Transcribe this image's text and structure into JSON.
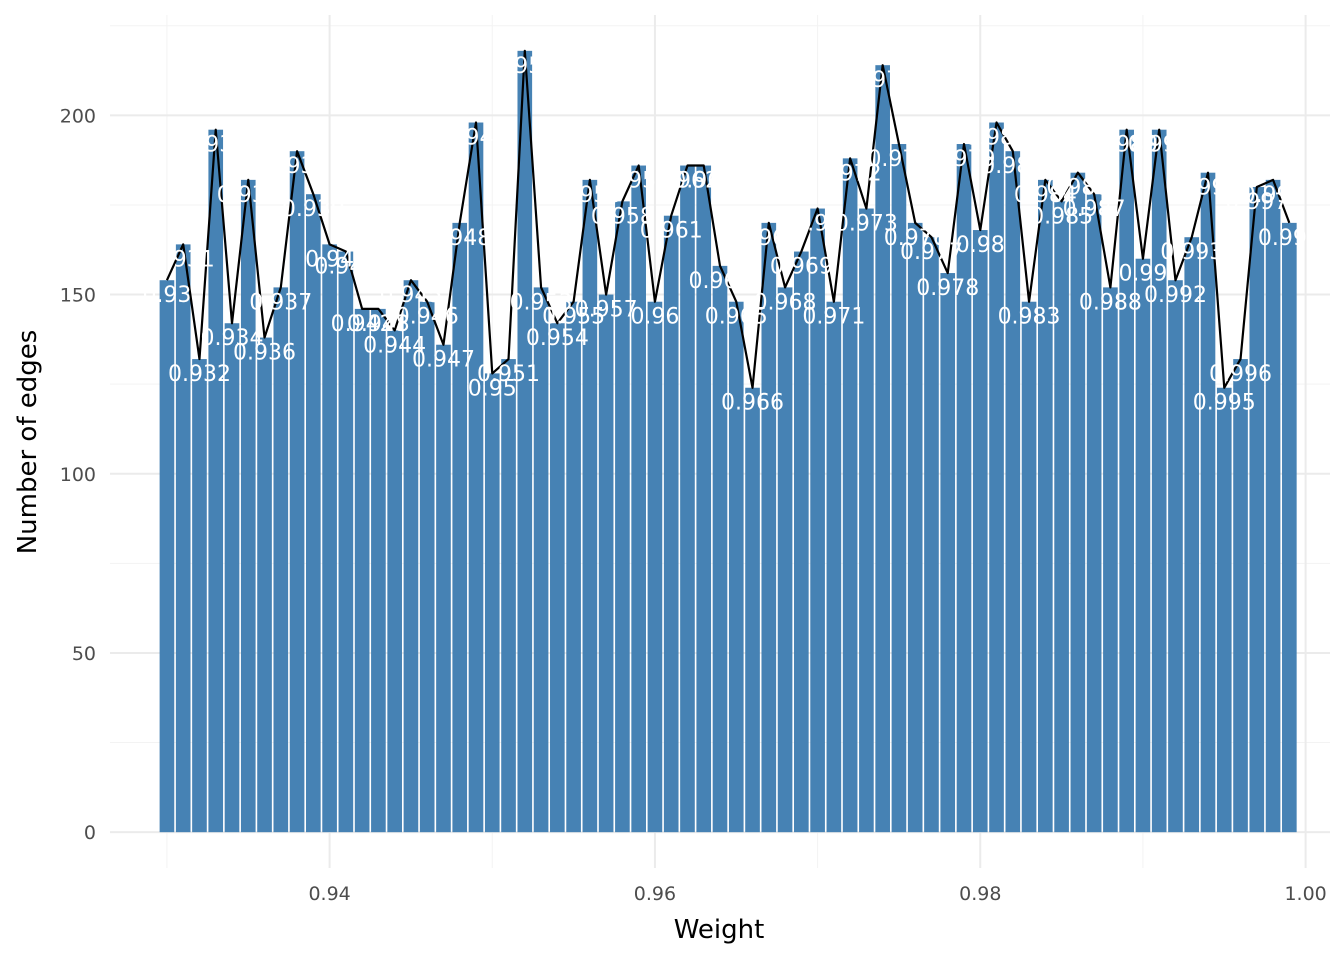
{
  "chart_data": {
    "type": "bar",
    "overlay": "line",
    "xlabel": "Weight",
    "ylabel": "Number of edges",
    "xlim": [
      0.9265,
      1.0015
    ],
    "ylim": [
      -10,
      228
    ],
    "x_ticks": [
      0.94,
      0.96,
      0.98,
      1.0
    ],
    "x_tick_labels": [
      "0.94",
      "0.96",
      "0.98",
      "1.00"
    ],
    "y_ticks": [
      0,
      50,
      100,
      150,
      200
    ],
    "y_tick_labels": [
      "0",
      "50",
      "100",
      "150",
      "200"
    ],
    "grid": true,
    "bar_color": "#4682b4",
    "line_color": "#000000",
    "label_color": "#ffffff",
    "x": [
      0.93,
      0.931,
      0.932,
      0.933,
      0.934,
      0.935,
      0.936,
      0.937,
      0.938,
      0.939,
      0.94,
      0.941,
      0.942,
      0.943,
      0.944,
      0.945,
      0.946,
      0.947,
      0.948,
      0.949,
      0.95,
      0.951,
      0.952,
      0.953,
      0.954,
      0.955,
      0.956,
      0.957,
      0.958,
      0.959,
      0.96,
      0.961,
      0.962,
      0.963,
      0.964,
      0.965,
      0.966,
      0.967,
      0.968,
      0.969,
      0.97,
      0.971,
      0.972,
      0.973,
      0.974,
      0.975,
      0.976,
      0.977,
      0.978,
      0.979,
      0.98,
      0.981,
      0.982,
      0.983,
      0.984,
      0.985,
      0.986,
      0.987,
      0.988,
      0.989,
      0.99,
      0.991,
      0.992,
      0.993,
      0.994,
      0.995,
      0.996,
      0.997,
      0.998,
      0.999
    ],
    "values": [
      154,
      164,
      132,
      196,
      142,
      182,
      138,
      152,
      190,
      178,
      164,
      162,
      146,
      146,
      140,
      154,
      148,
      136,
      170,
      198,
      128,
      132,
      218,
      152,
      142,
      148,
      182,
      150,
      176,
      186,
      148,
      172,
      186,
      186,
      158,
      148,
      124,
      170,
      152,
      162,
      174,
      148,
      188,
      174,
      214,
      192,
      170,
      166,
      156,
      192,
      168,
      198,
      190,
      148,
      182,
      176,
      184,
      178,
      152,
      196,
      160,
      196,
      154,
      166,
      184,
      124,
      132,
      180,
      182,
      170
    ],
    "point_labels": [
      "0.93",
      "0.931",
      "0.932",
      "0.933",
      "0.934",
      "0.935",
      "0.936",
      "0.937",
      "0.938",
      "0.939",
      "0.94",
      "0.941",
      "0.942",
      "0.943",
      "0.944",
      "0.945",
      "0.946",
      "0.947",
      "0.948",
      "0.949",
      "0.95",
      "0.951",
      "0.952",
      "0.953",
      "0.954",
      "0.955",
      "0.956",
      "0.957",
      "0.958",
      "0.959",
      "0.96",
      "0.961",
      "0.962",
      "0.963",
      "0.964",
      "0.965",
      "0.966",
      "0.967",
      "0.968",
      "0.969",
      "0.97",
      "0.971",
      "0.972",
      "0.973",
      "0.974",
      "0.975",
      "0.976",
      "0.977",
      "0.978",
      "0.979",
      "0.98",
      "0.981",
      "0.982",
      "0.983",
      "0.984",
      "0.985",
      "0.986",
      "0.987",
      "0.988",
      "0.989",
      "0.99",
      "0.991",
      "0.992",
      "0.993",
      "0.994",
      "0.995",
      "0.996",
      "0.997",
      "0.998",
      "0.999"
    ]
  }
}
